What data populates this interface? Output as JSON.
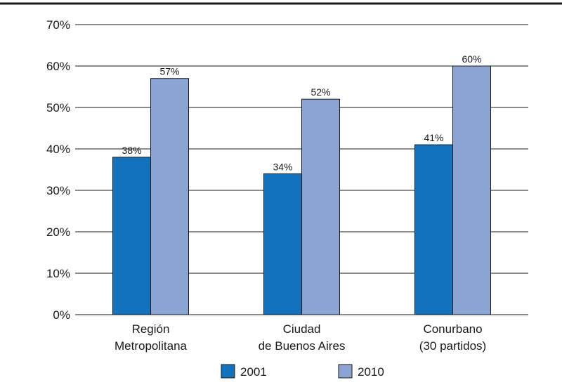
{
  "chart_data": {
    "type": "bar",
    "categories": [
      [
        "Región",
        "Metropolitana"
      ],
      [
        "Ciudad",
        "de Buenos Aires"
      ],
      [
        "Conurbano",
        "(30 partidos)"
      ]
    ],
    "series": [
      {
        "name": "2001",
        "values": [
          38,
          34,
          41
        ],
        "labels": [
          "38%",
          "34%",
          "41%"
        ],
        "color": "#1372bd"
      },
      {
        "name": "2010",
        "values": [
          57,
          52,
          60
        ],
        "labels": [
          "57%",
          "52%",
          "60%"
        ],
        "color": "#8ba4d4"
      }
    ],
    "yticks": [
      0,
      10,
      20,
      30,
      40,
      50,
      60,
      70
    ],
    "ytick_labels": [
      "0%",
      "10%",
      "20%",
      "30%",
      "40%",
      "50%",
      "60%",
      "70%"
    ],
    "ylim": [
      0,
      70
    ],
    "grid": true,
    "legend_position": "bottom"
  }
}
